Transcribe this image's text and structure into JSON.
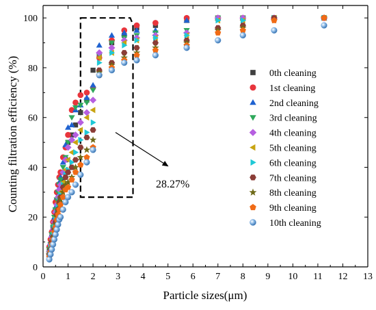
{
  "chart_data": {
    "type": "scatter",
    "title": "",
    "xlabel": "Particle sizes(μm)",
    "ylabel": "Counting filtration efficiency (%)",
    "xlim": [
      0,
      13
    ],
    "ylim": [
      0,
      105
    ],
    "x_ticks": [
      "0",
      "1",
      "2",
      "3",
      "4",
      "5",
      "6",
      "7",
      "8",
      "9",
      "10",
      "11",
      "12",
      "13"
    ],
    "y_ticks": [
      "0",
      "20",
      "40",
      "60",
      "80",
      "100"
    ],
    "grid": false,
    "legend_position": "right",
    "annotation": {
      "text": "28.27%",
      "box_x": [
        1.5,
        3.6
      ],
      "box_y": [
        28,
        100
      ],
      "arrow_from": [
        2.9,
        54
      ],
      "arrow_to": [
        5.0,
        40.5
      ]
    },
    "x": [
      0.25,
      0.3,
      0.35,
      0.4,
      0.45,
      0.5,
      0.55,
      0.6,
      0.65,
      0.7,
      0.8,
      0.9,
      1.0,
      1.15,
      1.3,
      1.5,
      1.75,
      2.0,
      2.25,
      2.75,
      3.25,
      3.75,
      4.5,
      5.75,
      7.0,
      8.0,
      9.25,
      11.25
    ],
    "series": [
      {
        "name": "0th cleaning",
        "marker": "square",
        "color": "#404040",
        "values": [
          7,
          9,
          12,
          15,
          18,
          21,
          24,
          27,
          29,
          31,
          35,
          43,
          50,
          53,
          57,
          62,
          67,
          79,
          85,
          90,
          93,
          96,
          97,
          99,
          100,
          100,
          100,
          100
        ]
      },
      {
        "name": "1st cleaning",
        "marker": "circle",
        "color": "#e8353c",
        "values": [
          8,
          11,
          14,
          18,
          22,
          26,
          30,
          33,
          36,
          38,
          44,
          48,
          53,
          63,
          66,
          69,
          70,
          72,
          84,
          91,
          95,
          97,
          98,
          100,
          100,
          100,
          100,
          100
        ]
      },
      {
        "name": "2nd cleaning",
        "marker": "triangle-up",
        "color": "#1f62d0",
        "values": [
          7,
          10,
          13,
          17,
          20,
          24,
          28,
          31,
          34,
          36,
          42,
          49,
          56,
          57,
          63,
          65,
          68,
          73,
          89,
          93,
          94,
          95,
          95,
          99,
          100,
          100,
          100,
          100
        ]
      },
      {
        "name": "3rd cleaning",
        "marker": "triangle-down",
        "color": "#2ea85b",
        "values": [
          7,
          9,
          13,
          16,
          20,
          23,
          27,
          30,
          33,
          35,
          40,
          44,
          50,
          60,
          64,
          65,
          66,
          71,
          85,
          90,
          92,
          93,
          94,
          95,
          100,
          100,
          100,
          100
        ]
      },
      {
        "name": "4th cleaning",
        "marker": "diamond",
        "color": "#b65fe0",
        "values": [
          6,
          9,
          12,
          15,
          18,
          22,
          25,
          28,
          31,
          33,
          38,
          43,
          48,
          51,
          53,
          58,
          62,
          67,
          86,
          88,
          91,
          92,
          93,
          94,
          100,
          100,
          100,
          100
        ]
      },
      {
        "name": "5th cleaning",
        "marker": "triangle-left",
        "color": "#c8a411",
        "values": [
          6,
          8,
          11,
          14,
          17,
          20,
          23,
          26,
          28,
          30,
          34,
          39,
          43,
          46,
          50,
          55,
          60,
          63,
          84,
          86,
          90,
          91,
          92,
          93,
          99,
          99,
          100,
          100
        ]
      },
      {
        "name": "6th cleaning",
        "marker": "triangle-right",
        "color": "#1fc8d6",
        "values": [
          5,
          8,
          10,
          13,
          16,
          19,
          22,
          24,
          27,
          29,
          33,
          37,
          39,
          42,
          46,
          51,
          54,
          58,
          82,
          86,
          89,
          91,
          92,
          93,
          99,
          99,
          100,
          100
        ]
      },
      {
        "name": "7th cleaning",
        "marker": "hexagon",
        "color": "#8b3d37",
        "values": [
          5,
          7,
          10,
          12,
          15,
          18,
          21,
          23,
          26,
          28,
          32,
          36,
          38,
          40,
          43,
          48,
          52,
          55,
          79,
          82,
          86,
          88,
          90,
          91,
          96,
          97,
          100,
          100
        ]
      },
      {
        "name": "8th cleaning",
        "marker": "star",
        "color": "#6e6a19",
        "values": [
          5,
          7,
          9,
          12,
          15,
          17,
          20,
          22,
          25,
          27,
          30,
          33,
          34,
          36,
          40,
          44,
          47,
          51,
          78,
          81,
          84,
          86,
          88,
          90,
          95,
          96,
          99,
          100
        ]
      },
      {
        "name": "9th cleaning",
        "marker": "pentagon",
        "color": "#f06b16",
        "values": [
          4,
          6,
          9,
          11,
          14,
          16,
          19,
          21,
          23,
          25,
          28,
          31,
          32,
          35,
          38,
          41,
          44,
          48,
          77,
          80,
          83,
          85,
          87,
          89,
          94,
          95,
          99,
          100
        ]
      },
      {
        "name": "10th cleaning",
        "marker": "sphere",
        "color": "#4f8ed0",
        "values": [
          3,
          5,
          7,
          9,
          11,
          13,
          15,
          17,
          19,
          20,
          23,
          26,
          28,
          30,
          33,
          37,
          42,
          47,
          77,
          79,
          82,
          83,
          85,
          88,
          91,
          93,
          95,
          97
        ]
      }
    ]
  }
}
